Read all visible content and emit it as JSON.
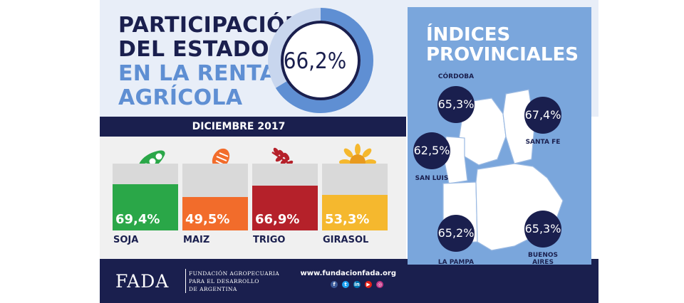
{
  "title": {
    "line1": "PARTICIPACIÓN",
    "line2": "DEL ESTADO",
    "line3": "EN LA RENTA",
    "line4": "AGRÍCOLA"
  },
  "total": {
    "label": "66,2%",
    "value": 66.2
  },
  "date": "DICIEMBRE 2017",
  "colors": {
    "navy": "#1a1f4e",
    "accent_blue": "#5f8fd3",
    "panel_blue": "#7aa6dc",
    "soja": "#2aa748",
    "maiz": "#f26c2b",
    "trigo": "#b5212a",
    "girasol": "#f5b82e"
  },
  "chart_data": {
    "type": "bar",
    "categories": [
      "SOJA",
      "MAIZ",
      "TRIGO",
      "GIRASOL"
    ],
    "values": [
      69.4,
      49.5,
      66.9,
      53.3
    ],
    "value_labels": [
      "69,4%",
      "49,5%",
      "66,9%",
      "53,3%"
    ],
    "icons": [
      "soy-pod-icon",
      "corn-icon",
      "wheat-icon",
      "sunflower-icon"
    ],
    "ylim": [
      0,
      100
    ]
  },
  "provinces": {
    "title_line1": "ÍNDICES",
    "title_line2": "PROVINCIALES",
    "items": [
      {
        "name": "CÓRDOBA",
        "value": "65,3%"
      },
      {
        "name": "SANTA FE",
        "value": "67,4%"
      },
      {
        "name": "SAN LUIS",
        "value": "62,5%"
      },
      {
        "name": "LA PAMPA",
        "value": "65,2%"
      },
      {
        "name_line1": "BUENOS",
        "name_line2": "AIRES",
        "value": "65,3%"
      }
    ]
  },
  "footer": {
    "logo": "FADA",
    "org_line1": "FUNDACIÓN AGROPECUARIA",
    "org_line2": "PARA EL DESARROLLO",
    "org_line3": "DE ARGENTINA",
    "url": "www.fundacionfada.org",
    "social_icons": [
      "facebook-icon",
      "twitter-icon",
      "linkedin-icon",
      "youtube-icon",
      "instagram-icon"
    ]
  }
}
